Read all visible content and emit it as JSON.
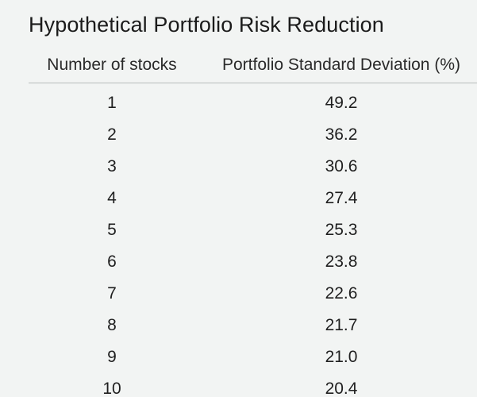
{
  "title": "Hypothetical Portfolio Risk Reduction",
  "table": {
    "headers": [
      "Number of stocks",
      "Portfolio Standard Deviation (%)"
    ],
    "rows": [
      [
        "1",
        "49.2"
      ],
      [
        "2",
        "36.2"
      ],
      [
        "3",
        "30.6"
      ],
      [
        "4",
        "27.4"
      ],
      [
        "5",
        "25.3"
      ],
      [
        "6",
        "23.8"
      ],
      [
        "7",
        "22.6"
      ],
      [
        "8",
        "21.7"
      ],
      [
        "9",
        "21.0"
      ],
      [
        "10",
        "20.4"
      ]
    ]
  },
  "colors": {
    "background": "#f2f4f3",
    "text": "#1b1b1b",
    "rule": "#b8bcbb"
  }
}
